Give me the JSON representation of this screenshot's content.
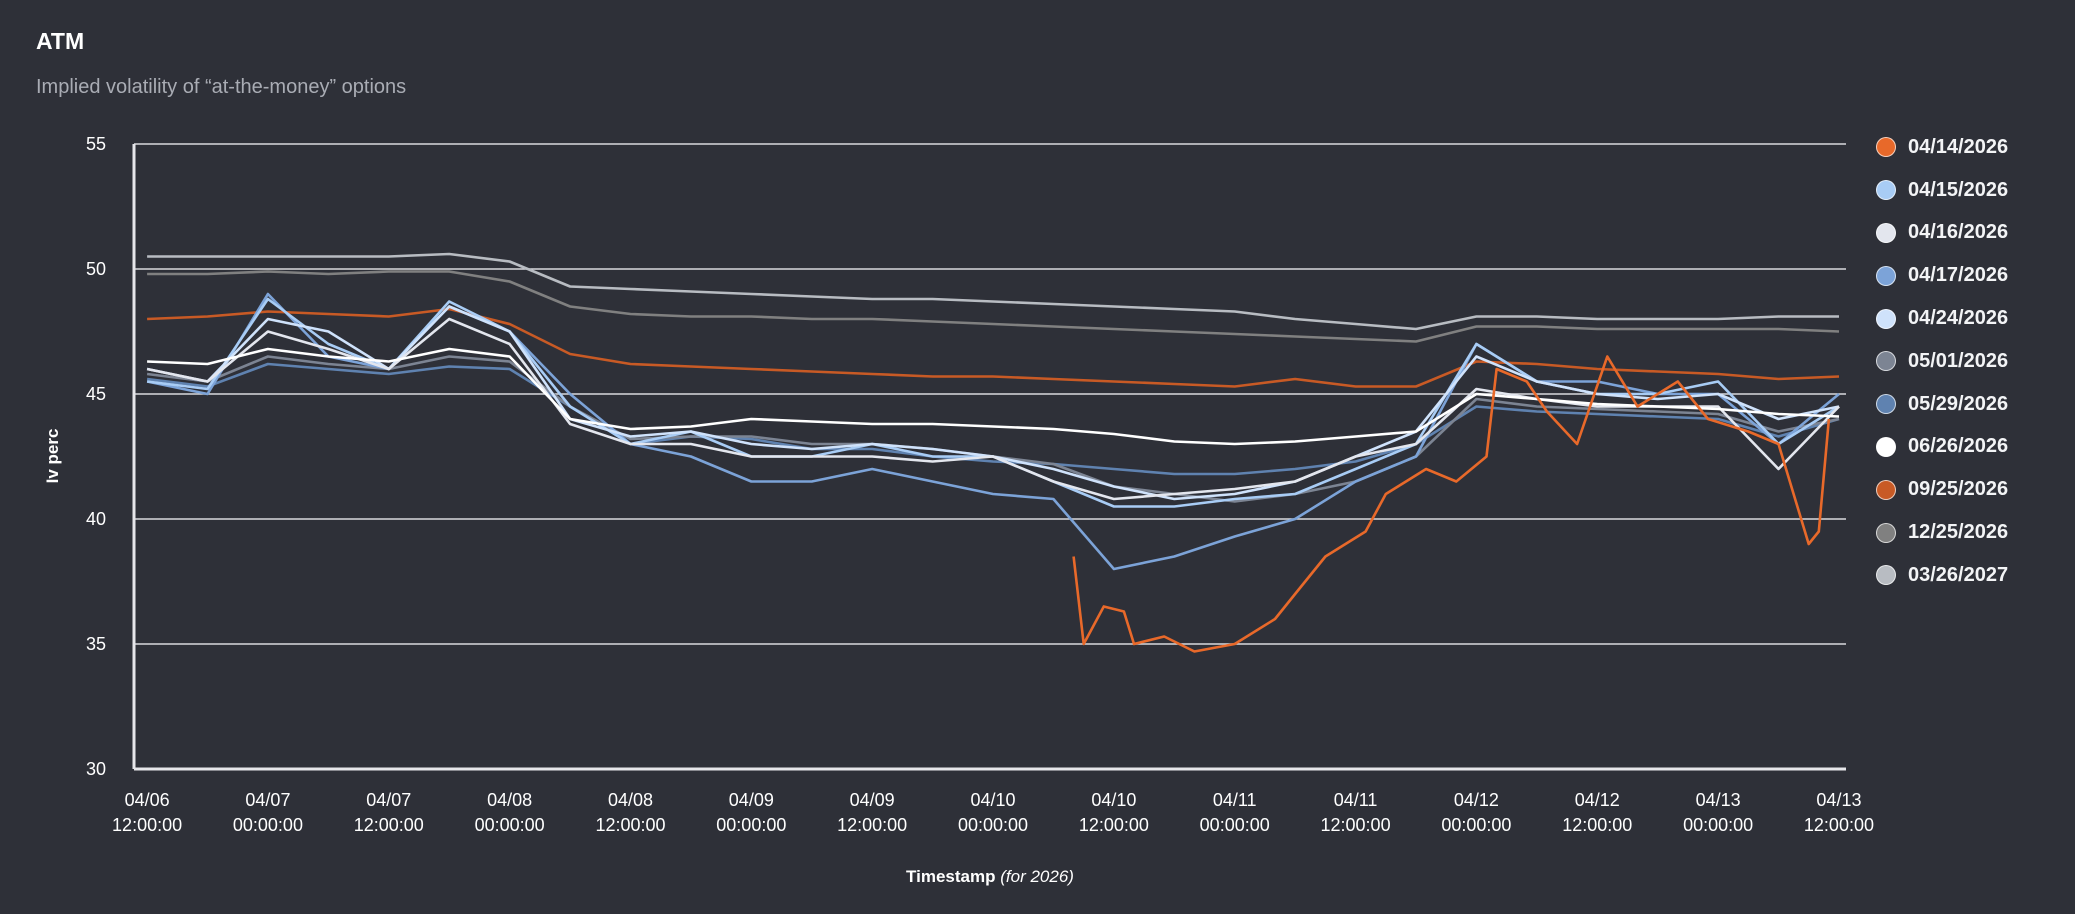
{
  "header": {
    "title": "ATM",
    "subtitle": "Implied volatility of “at-the-money” options"
  },
  "chart_data": {
    "type": "line",
    "title": "ATM",
    "subtitle": "Implied volatility of “at-the-money” options",
    "xlabel": "Timestamp",
    "xlabel_suffix": "(for 2026)",
    "ylabel": "Iv perc",
    "ylim": [
      30,
      55
    ],
    "yticks": [
      "30",
      "35",
      "40",
      "45",
      "50",
      "55"
    ],
    "grid": "horizontal",
    "legend_position": "right",
    "background": "#2e3038",
    "xticks": [
      {
        "date": "04/06",
        "time": "12:00:00"
      },
      {
        "date": "04/07",
        "time": "00:00:00"
      },
      {
        "date": "04/07",
        "time": "12:00:00"
      },
      {
        "date": "04/08",
        "time": "00:00:00"
      },
      {
        "date": "04/08",
        "time": "12:00:00"
      },
      {
        "date": "04/09",
        "time": "00:00:00"
      },
      {
        "date": "04/09",
        "time": "12:00:00"
      },
      {
        "date": "04/10",
        "time": "00:00:00"
      },
      {
        "date": "04/10",
        "time": "12:00:00"
      },
      {
        "date": "04/11",
        "time": "00:00:00"
      },
      {
        "date": "04/11",
        "time": "12:00:00"
      },
      {
        "date": "04/12",
        "time": "00:00:00"
      },
      {
        "date": "04/12",
        "time": "12:00:00"
      },
      {
        "date": "04/13",
        "time": "00:00:00"
      },
      {
        "date": "04/13",
        "time": "12:00:00"
      }
    ],
    "x": [
      "04/06 12:00",
      "04/06 18:00",
      "04/07 00:00",
      "04/07 06:00",
      "04/07 12:00",
      "04/07 18:00",
      "04/08 00:00",
      "04/08 06:00",
      "04/08 12:00",
      "04/08 18:00",
      "04/09 00:00",
      "04/09 06:00",
      "04/09 12:00",
      "04/09 18:00",
      "04/10 00:00",
      "04/10 06:00",
      "04/10 12:00",
      "04/10 18:00",
      "04/11 00:00",
      "04/11 06:00",
      "04/11 12:00",
      "04/11 18:00",
      "04/12 00:00",
      "04/12 06:00",
      "04/12 12:00",
      "04/12 18:00",
      "04/13 00:00",
      "04/13 06:00",
      "04/13 12:00"
    ],
    "series": [
      {
        "name": "04/14/2026",
        "color": "#e8692a",
        "x": [
          "04/10 08:00",
          "04/10 09:00",
          "04/10 11:00",
          "04/10 13:00",
          "04/10 14:00",
          "04/10 17:00",
          "04/10 20:00",
          "04/11 00:00",
          "04/11 04:00",
          "04/11 06:00",
          "04/11 09:00",
          "04/11 13:00",
          "04/11 15:00",
          "04/11 19:00",
          "04/11 22:00",
          "04/12 01:00",
          "04/12 02:00",
          "04/12 05:00",
          "04/12 07:00",
          "04/12 10:00",
          "04/12 13:00",
          "04/12 16:00",
          "04/12 20:00",
          "04/12 23:00",
          "04/13 03:00",
          "04/13 06:00",
          "04/13 09:00",
          "04/13 10:00",
          "04/13 11:00"
        ],
        "values": [
          38.5,
          35.0,
          36.5,
          36.3,
          35.0,
          35.3,
          34.7,
          35.0,
          36.0,
          37.0,
          38.5,
          39.5,
          41.0,
          42.0,
          41.5,
          42.5,
          46.0,
          45.5,
          44.3,
          43.0,
          46.5,
          44.5,
          45.5,
          44.0,
          43.5,
          43.0,
          39.0,
          39.5,
          44.0
        ]
      },
      {
        "name": "04/15/2026",
        "color": "#a8ccf5",
        "values": [
          45.5,
          45.2,
          48.8,
          47.0,
          46.0,
          48.7,
          47.5,
          44.5,
          43.0,
          43.5,
          42.5,
          42.5,
          43.0,
          42.5,
          42.5,
          41.5,
          40.5,
          40.5,
          40.8,
          41.0,
          42.0,
          43.0,
          47.0,
          45.5,
          45.0,
          45.0,
          45.5,
          43.0,
          44.5
        ]
      },
      {
        "name": "04/16/2026",
        "color": "#e3e6ee",
        "values": [
          46.0,
          45.5,
          47.5,
          46.8,
          46.0,
          48.0,
          47.0,
          43.8,
          43.0,
          43.0,
          42.5,
          42.5,
          42.5,
          42.3,
          42.5,
          41.5,
          40.8,
          41.0,
          41.2,
          41.5,
          42.5,
          43.0,
          45.2,
          44.8,
          44.5,
          44.5,
          44.5,
          42.0,
          44.5
        ]
      },
      {
        "name": "04/17/2026",
        "color": "#7ca3d8",
        "values": [
          45.5,
          45.0,
          49.0,
          46.5,
          46.0,
          48.5,
          47.5,
          45.0,
          43.0,
          42.5,
          41.5,
          41.5,
          42.0,
          41.5,
          41.0,
          40.8,
          38.0,
          38.5,
          39.3,
          40.0,
          41.5,
          42.5,
          47.0,
          45.5,
          45.5,
          45.0,
          45.0,
          43.0,
          45.0
        ]
      },
      {
        "name": "04/24/2026",
        "color": "#cfe2fb",
        "values": [
          46.0,
          45.5,
          48.0,
          47.5,
          46.0,
          48.5,
          47.5,
          44.0,
          43.3,
          43.5,
          43.0,
          42.8,
          43.0,
          42.8,
          42.5,
          42.0,
          41.3,
          40.8,
          41.0,
          41.5,
          42.5,
          43.5,
          46.5,
          45.5,
          45.0,
          44.8,
          45.0,
          44.0,
          44.5
        ]
      },
      {
        "name": "05/01/2026",
        "color": "#7c8493",
        "values": [
          45.8,
          45.5,
          46.5,
          46.2,
          46.0,
          46.5,
          46.3,
          44.5,
          43.2,
          43.3,
          43.3,
          43.0,
          43.0,
          42.8,
          42.5,
          42.2,
          41.3,
          41.0,
          40.7,
          41.0,
          41.5,
          42.5,
          44.8,
          44.5,
          44.4,
          44.3,
          44.2,
          43.5,
          44.0
        ]
      },
      {
        "name": "05/29/2026",
        "color": "#5f82b0",
        "values": [
          45.6,
          45.3,
          46.2,
          46.0,
          45.8,
          46.1,
          46.0,
          44.5,
          43.0,
          43.3,
          43.2,
          42.8,
          42.8,
          42.5,
          42.3,
          42.2,
          42.0,
          41.8,
          41.8,
          42.0,
          42.3,
          43.0,
          44.5,
          44.3,
          44.2,
          44.1,
          44.0,
          43.3,
          44.0
        ]
      },
      {
        "name": "06/26/2026",
        "color": "#ffffff",
        "values": [
          46.3,
          46.2,
          46.8,
          46.5,
          46.3,
          46.8,
          46.5,
          44.0,
          43.6,
          43.7,
          44.0,
          43.9,
          43.8,
          43.8,
          43.7,
          43.6,
          43.4,
          43.1,
          43.0,
          43.1,
          43.3,
          43.5,
          45.0,
          44.8,
          44.6,
          44.5,
          44.4,
          44.2,
          44.1
        ]
      },
      {
        "name": "09/25/2026",
        "color": "#c85a25",
        "values": [
          48.0,
          48.1,
          48.3,
          48.2,
          48.1,
          48.4,
          47.8,
          46.6,
          46.2,
          46.1,
          46.0,
          45.9,
          45.8,
          45.7,
          45.7,
          45.6,
          45.5,
          45.4,
          45.3,
          45.6,
          45.3,
          45.3,
          46.3,
          46.2,
          46.0,
          45.9,
          45.8,
          45.6,
          45.7
        ]
      },
      {
        "name": "12/25/2026",
        "color": "#808080",
        "values": [
          49.8,
          49.8,
          49.9,
          49.8,
          49.9,
          49.9,
          49.5,
          48.5,
          48.2,
          48.1,
          48.1,
          48.0,
          48.0,
          47.9,
          47.8,
          47.7,
          47.6,
          47.5,
          47.4,
          47.3,
          47.2,
          47.1,
          47.7,
          47.7,
          47.6,
          47.6,
          47.6,
          47.6,
          47.5
        ]
      },
      {
        "name": "03/26/2027",
        "color": "#b8bcc2",
        "values": [
          50.5,
          50.5,
          50.5,
          50.5,
          50.5,
          50.6,
          50.3,
          49.3,
          49.2,
          49.1,
          49.0,
          48.9,
          48.8,
          48.8,
          48.7,
          48.6,
          48.5,
          48.4,
          48.3,
          48.0,
          47.8,
          47.6,
          48.1,
          48.1,
          48.0,
          48.0,
          48.0,
          48.1,
          48.1
        ]
      }
    ]
  }
}
